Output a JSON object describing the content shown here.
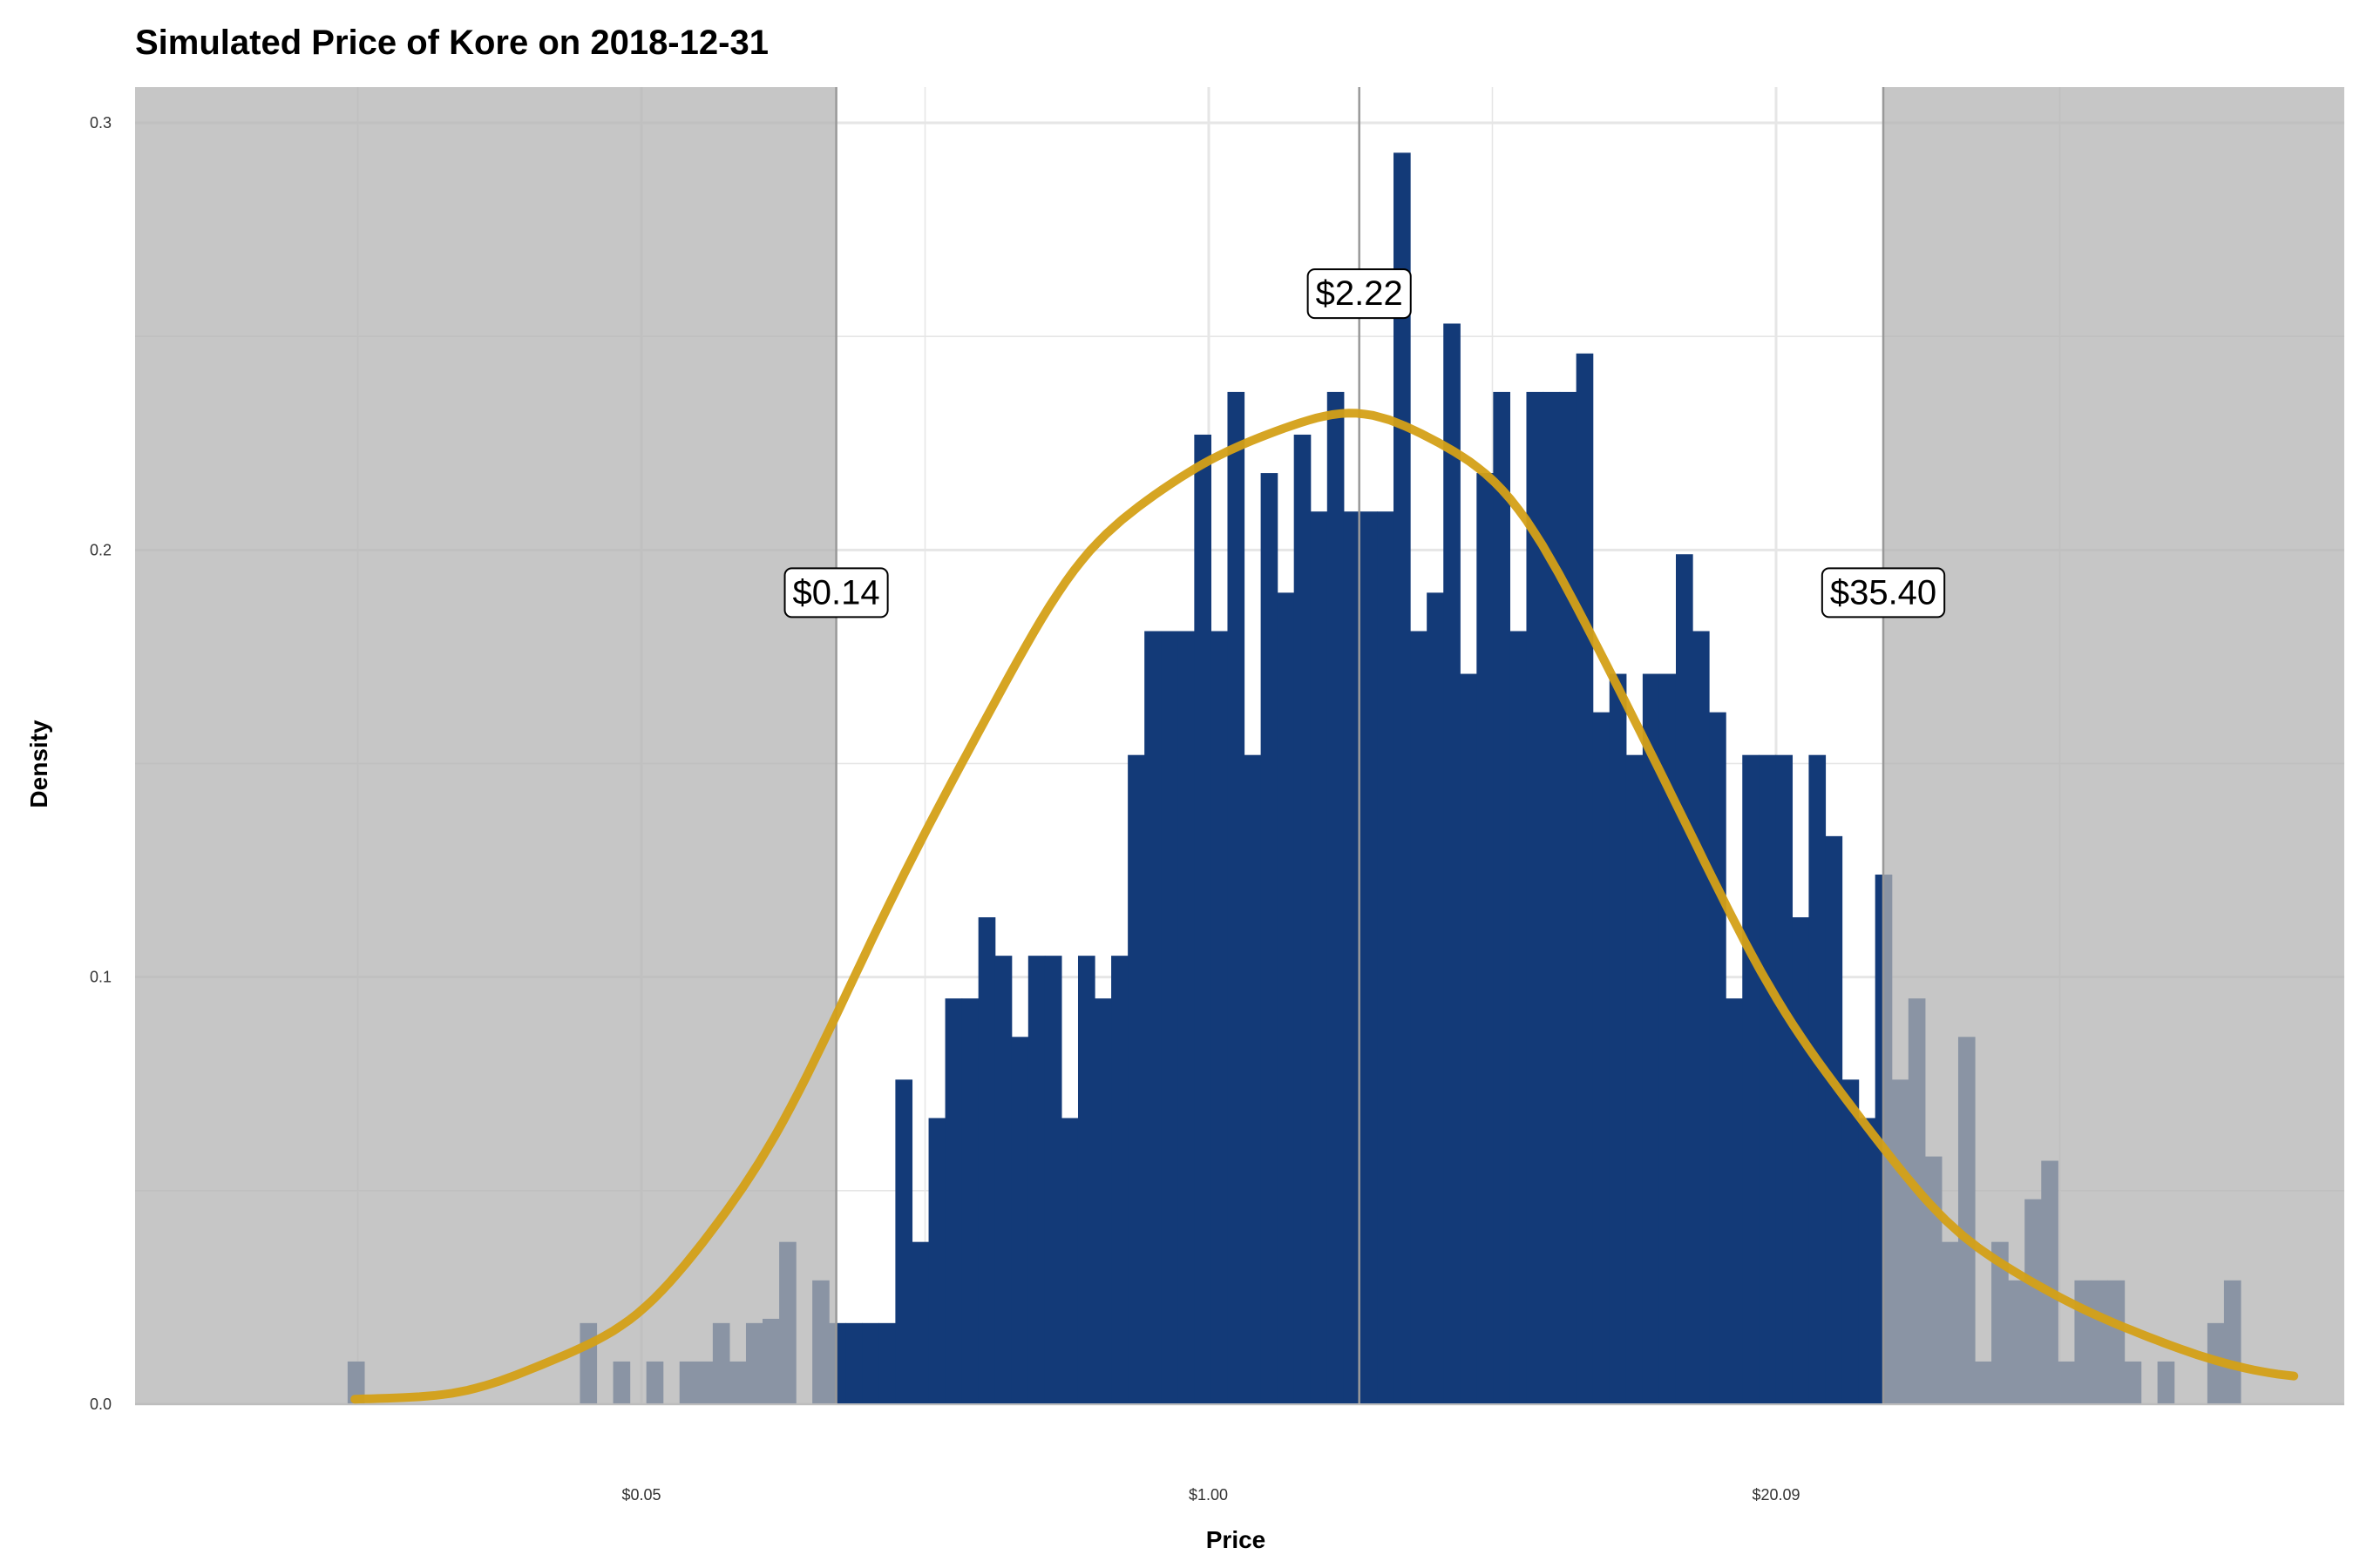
{
  "chart_data": {
    "type": "bar",
    "title": "Simulated Price of Kore on 2018-12-31",
    "xlabel": "Price",
    "ylabel": "Density",
    "x_scale": "log",
    "ylim": [
      0,
      0.3
    ],
    "y_ticks": [
      "0.0",
      "0.1",
      "0.2",
      "0.3"
    ],
    "x_ticks": [
      {
        "value": 0.05,
        "label": "$0.05"
      },
      {
        "value": 1.0,
        "label": "$1.00"
      },
      {
        "value": 20.09,
        "label": "$20.09"
      }
    ],
    "histogram": {
      "color": "#133A78",
      "bin_width_log": 0.0877,
      "centers": [
        0.01106,
        0.01207,
        0.01317,
        0.01438,
        0.0157,
        0.01714,
        0.01871,
        0.02043,
        0.0223,
        0.02434,
        0.02658,
        0.02901,
        0.03167,
        0.03458,
        0.03775,
        0.04121,
        0.04499,
        0.04911,
        0.05362,
        0.05853,
        0.0639,
        0.06976,
        0.07616,
        0.08314,
        0.09077,
        0.09909,
        0.1082,
        0.1181,
        0.1289,
        0.1407,
        0.1536,
        0.1677,
        0.1831,
        0.1999,
        0.2182,
        0.2383,
        0.2601,
        0.284,
        0.31,
        0.3384,
        0.3694,
        0.4033,
        0.4403,
        0.4807,
        0.5248,
        0.5729,
        0.6254,
        0.6828,
        0.7454,
        0.8138,
        0.8884,
        0.9699,
        1.059,
        1.156,
        1.262,
        1.378,
        1.504,
        1.642,
        1.793,
        1.957,
        2.137,
        2.333,
        2.547,
        2.78,
        3.035,
        3.314,
        3.618,
        3.949,
        4.312,
        4.707,
        5.139,
        5.61,
        6.125,
        6.687,
        7.3,
        7.97,
        8.701,
        9.499,
        10.37,
        11.32,
        12.36,
        13.49,
        14.73,
        16.08,
        17.56,
        19.17,
        20.93,
        22.85,
        24.94,
        27.23,
        29.73,
        32.45,
        35.43,
        38.68,
        42.23,
        46.1,
        50.33,
        54.95,
        59.99,
        65.49,
        71.5,
        78.06,
        85.22,
        93.03,
        101.6,
        110.9,
        121.1,
        132.2,
        144.3,
        157.5,
        172,
        187.7,
        205,
        223.8,
        244.3,
        266.7,
        291.2,
        317.9
      ],
      "densities": [
        0.01,
        0,
        0,
        0,
        0,
        0,
        0,
        0,
        0,
        0,
        0,
        0,
        0,
        0,
        0.019,
        0,
        0.01,
        0,
        0.01,
        0,
        0.01,
        0.01,
        0.019,
        0.01,
        0.019,
        0.02,
        0.038,
        0,
        0.029,
        0.019,
        0.019,
        0.019,
        0.019,
        0.076,
        0.038,
        0.067,
        0.095,
        0.095,
        0.114,
        0.105,
        0.086,
        0.105,
        0.105,
        0.067,
        0.105,
        0.095,
        0.105,
        0.152,
        0.181,
        0.181,
        0.181,
        0.227,
        0.181,
        0.237,
        0.152,
        0.218,
        0.19,
        0.227,
        0.209,
        0.237,
        0.209,
        0.209,
        0.209,
        0.293,
        0.181,
        0.19,
        0.253,
        0.171,
        0.218,
        0.237,
        0.181,
        0.237,
        0.237,
        0.237,
        0.246,
        0.162,
        0.171,
        0.152,
        0.171,
        0.171,
        0.199,
        0.181,
        0.162,
        0.095,
        0.152,
        0.152,
        0.152,
        0.114,
        0.152,
        0.133,
        0.076,
        0.067,
        0.124,
        0.076,
        0.095,
        0.058,
        0.038,
        0.086,
        0.01,
        0.038,
        0.029,
        0.048,
        0.057,
        0.01,
        0.029,
        0.029,
        0.029,
        0.01,
        0,
        0.01,
        0,
        0,
        0.019,
        0.029
      ]
    },
    "density_curve": {
      "color": "#D4A017",
      "x": [
        0.01,
        0.02,
        0.05,
        0.1,
        0.2,
        0.5,
        1,
        2.22,
        5,
        10,
        20,
        50,
        100,
        200,
        300
      ],
      "y": [
        0.001,
        0.002,
        0.019,
        0.059,
        0.125,
        0.2,
        0.222,
        0.235,
        0.216,
        0.156,
        0.093,
        0.04,
        0.022,
        0.01,
        0.006
      ]
    },
    "interval": {
      "lower": 0.14,
      "upper": 35.4,
      "median": 2.22,
      "shade_color": "#B3B3B3"
    },
    "annotations": [
      {
        "text": "$0.14",
        "x": 0.14,
        "y": 0.19
      },
      {
        "text": "$2.22",
        "x": 2.22,
        "y": 0.26
      },
      {
        "text": "$35.40",
        "x": 35.4,
        "y": 0.19
      }
    ],
    "grid": true
  }
}
